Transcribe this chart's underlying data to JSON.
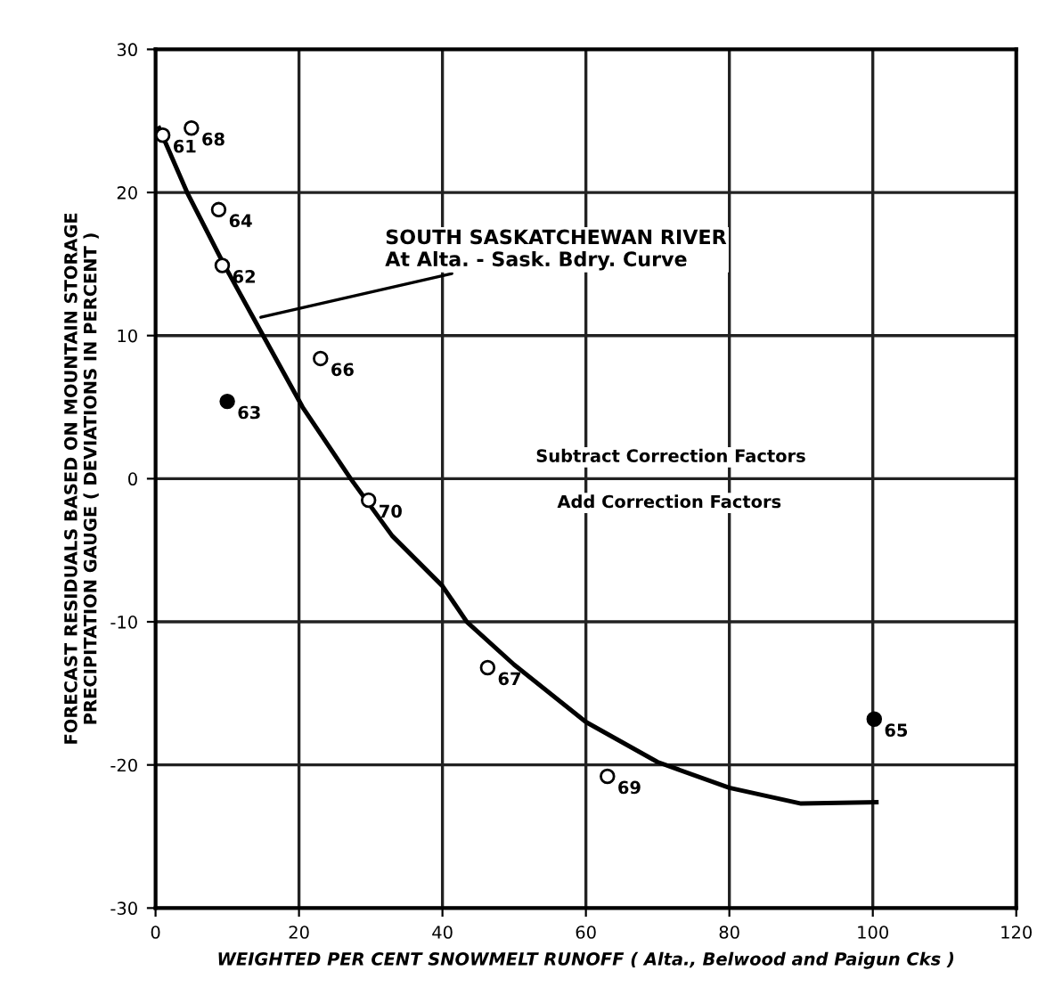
{
  "chart_data": {
    "type": "scatter",
    "xlabel": "WEIGHTED PER CENT SNOWMELT RUNOFF ( Alta., Belwood and Paigun Cks )",
    "ylabel": "FORECAST RESIDUALS BASED ON MOUNTAIN STORAGE\nPRECIPITATION GAUGE ( DEVIATIONS IN PERCENT )",
    "xlim": [
      0,
      120
    ],
    "xticks": [
      0,
      20,
      40,
      60,
      80,
      100,
      120
    ],
    "ylim": [
      -30,
      30
    ],
    "yticks": [
      -30,
      -20,
      -10,
      0,
      10,
      20,
      30
    ],
    "grid": true,
    "marker": "circle",
    "series": [
      {
        "color": "#ffffff",
        "x": [
          1,
          5,
          8.8,
          9.3,
          23,
          29.7,
          46.3,
          63
        ],
        "values": [
          24,
          24.5,
          18.8,
          14.9,
          8.4,
          -1.5,
          -13.2,
          -20.8
        ]
      },
      {
        "color": "#000000",
        "x": [
          10,
          100.2
        ],
        "values": [
          5.4,
          -16.8
        ]
      },
      {
        "type": "line",
        "color": "#000000",
        "marker": "none",
        "x": [
          0.5,
          4.4,
          9.5,
          15,
          20.5,
          27.2,
          33,
          40,
          43.4,
          50,
          60,
          70,
          80,
          90,
          100.5
        ],
        "values": [
          24.5,
          20,
          15,
          10,
          5,
          0,
          -4,
          -7.5,
          -10,
          -13,
          -17,
          -19.8,
          -21.6,
          -22.7,
          -22.6
        ]
      }
    ],
    "annotations": [
      {
        "text": "SOUTH SASKATCHEWAN RIVER\nAt Alta. - Sask. Bdry. Curve",
        "x": 14,
        "y": 11.2
      },
      "Subtract Correction Factors",
      "Add Correction Factors",
      {
        "text": "61",
        "x": 1,
        "y": 24
      },
      {
        "text": "68",
        "x": 5,
        "y": 24.5
      },
      {
        "text": "64",
        "x": 8.8,
        "y": 18.8
      },
      {
        "text": "62",
        "x": 9.3,
        "y": 14.9
      },
      {
        "text": "66",
        "x": 23,
        "y": 8.4
      },
      {
        "text": "70",
        "x": 29.7,
        "y": -1.5
      },
      {
        "text": "67",
        "x": 46.3,
        "y": -13.2
      },
      {
        "text": "69",
        "x": 63,
        "y": -20.8
      },
      {
        "text": "63",
        "x": 10,
        "y": 5.4
      },
      {
        "text": "65",
        "x": 100.2,
        "y": -16.8
      }
    ]
  }
}
